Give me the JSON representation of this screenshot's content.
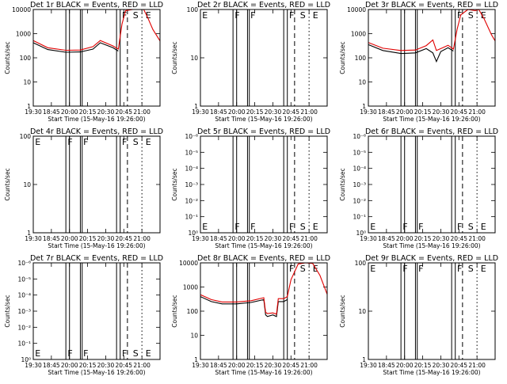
{
  "chart_data": {
    "type": "line",
    "x_tick_labels": [
      "19:30",
      "18:45",
      "20:00",
      "20:15",
      "20:30",
      "20:45",
      "21:00"
    ],
    "xlabel": "Start Time (15-May-16 19:26:00)",
    "ylabel": "Counts/sec",
    "legend": "BLACK = Events, RED = LLD",
    "panels": [
      {
        "title": "Det 1r BLACK = Events, RED = LLD",
        "ylim": [
          1,
          10000
        ],
        "y_tick_labels": [
          "1",
          "10",
          "100",
          "1000",
          "10000"
        ],
        "marker_labels": [
          "F",
          "S",
          "E"
        ],
        "series": [
          {
            "color": "#000000",
            "x": [
              0,
              0.4,
              0.9,
              1.3,
              1.65,
              1.85,
              2.2,
              2.35
            ],
            "y": [
              420,
              220,
              170,
              175,
              230,
              420,
              260,
              190
            ]
          },
          {
            "color": "#e00000",
            "x": [
              0,
              0.4,
              0.9,
              1.3,
              1.65,
              1.85,
              2.2,
              2.35,
              2.45,
              2.55,
              2.75,
              2.95,
              3.05,
              3.15,
              3.3,
              3.5
            ],
            "y": [
              520,
              260,
              205,
              210,
              290,
              520,
              310,
              230,
              2500,
              9000,
              12000,
              10000,
              13000,
              5000,
              1500,
              500
            ]
          }
        ]
      },
      {
        "title": "Det 2r BLACK = Events, RED = LLD",
        "ylim": [
          1,
          100
        ],
        "y_tick_labels": [
          "1",
          "10",
          "100"
        ],
        "marker_labels": [
          "E",
          "F",
          "F",
          "F",
          "S",
          "E"
        ],
        "series": []
      },
      {
        "title": "Det 3r BLACK = Events, RED = LLD",
        "ylim": [
          1,
          10000
        ],
        "y_tick_labels": [
          "1",
          "10",
          "100",
          "1000",
          "10000"
        ],
        "marker_labels": [
          "F",
          "S",
          "E"
        ],
        "series": [
          {
            "color": "#000000",
            "x": [
              0,
              0.4,
              0.9,
              1.3,
              1.6,
              1.78,
              1.88,
              2.0,
              2.2,
              2.35
            ],
            "y": [
              350,
              200,
              150,
              160,
              240,
              160,
              70,
              180,
              260,
              190
            ]
          },
          {
            "color": "#e00000",
            "x": [
              0,
              0.4,
              0.9,
              1.3,
              1.6,
              1.78,
              1.88,
              2.0,
              2.2,
              2.35,
              2.45,
              2.55,
              2.75,
              2.95,
              3.05,
              3.2,
              3.4,
              3.5
            ],
            "y": [
              430,
              250,
              200,
              210,
              320,
              550,
              200,
              240,
              330,
              230,
              1500,
              6000,
              11000,
              9000,
              12000,
              4000,
              900,
              500
            ]
          }
        ]
      },
      {
        "title": "Det 4r BLACK = Events, RED = LLD",
        "ylim": [
          1,
          100
        ],
        "y_tick_labels": [
          "1",
          "10",
          "100"
        ],
        "marker_labels": [
          "E",
          "F",
          "F",
          "F",
          "S",
          "E"
        ],
        "series": []
      },
      {
        "title": "Det 5r BLACK = Events, RED = LLD",
        "ylim": [
          1,
          10000
        ],
        "y_tick_labels": [
          "10⁰",
          "10⁻¹",
          "10⁻²",
          "10⁻³",
          "10⁻⁴",
          "10⁻⁵",
          "10⁻⁶"
        ],
        "marker_labels": [
          "E",
          "F",
          "F",
          "F",
          "S",
          "E"
        ],
        "series": []
      },
      {
        "title": "Det 6r BLACK = Events, RED = LLD",
        "ylim": [
          1,
          10000
        ],
        "y_tick_labels": [
          "10⁰",
          "10⁻¹",
          "10⁻²",
          "10⁻³",
          "10⁻⁴",
          "10⁻⁵",
          "10⁻⁶"
        ],
        "marker_labels": [
          "E",
          "F",
          "F",
          "F",
          "S",
          "E"
        ],
        "series": []
      },
      {
        "title": "Det 7r BLACK = Events, RED = LLD",
        "ylim": [
          1,
          10000
        ],
        "y_tick_labels": [
          "10⁰",
          "10⁻¹",
          "10⁻²",
          "10⁻³",
          "10⁻⁴",
          "10⁻⁵",
          "10⁻⁶"
        ],
        "marker_labels": [
          "E",
          "F",
          "F",
          "F",
          "S",
          "E"
        ],
        "series": []
      },
      {
        "title": "Det 8r BLACK = Events, RED = LLD",
        "ylim": [
          1,
          10000
        ],
        "y_tick_labels": [
          "1",
          "10",
          "100",
          "1000",
          "10000"
        ],
        "marker_labels": [
          "F",
          "S",
          "E"
        ],
        "series": [
          {
            "color": "#000000",
            "x": [
              0,
              0.3,
              0.6,
              1.0,
              1.4,
              1.75,
              1.8,
              1.85,
              2.0,
              2.1,
              2.15,
              2.3,
              2.4
            ],
            "y": [
              400,
              250,
              200,
              200,
              230,
              300,
              70,
              60,
              70,
              60,
              250,
              250,
              300
            ]
          },
          {
            "color": "#e00000",
            "x": [
              0,
              0.3,
              0.6,
              1.0,
              1.4,
              1.75,
              1.8,
              1.85,
              2.0,
              2.1,
              2.15,
              2.3,
              2.4,
              2.5,
              2.7,
              2.9,
              3.1,
              3.3,
              3.5
            ],
            "y": [
              480,
              300,
              240,
              240,
              270,
              360,
              90,
              80,
              85,
              75,
              330,
              330,
              400,
              2000,
              9000,
              12000,
              9500,
              3000,
              500
            ]
          }
        ]
      },
      {
        "title": "Det 9r BLACK = Events, RED = LLD",
        "ylim": [
          1,
          100
        ],
        "y_tick_labels": [
          "1",
          "10",
          "100"
        ],
        "marker_labels": [
          "E",
          "F",
          "F",
          "F",
          "S",
          "E"
        ],
        "series": []
      }
    ]
  }
}
